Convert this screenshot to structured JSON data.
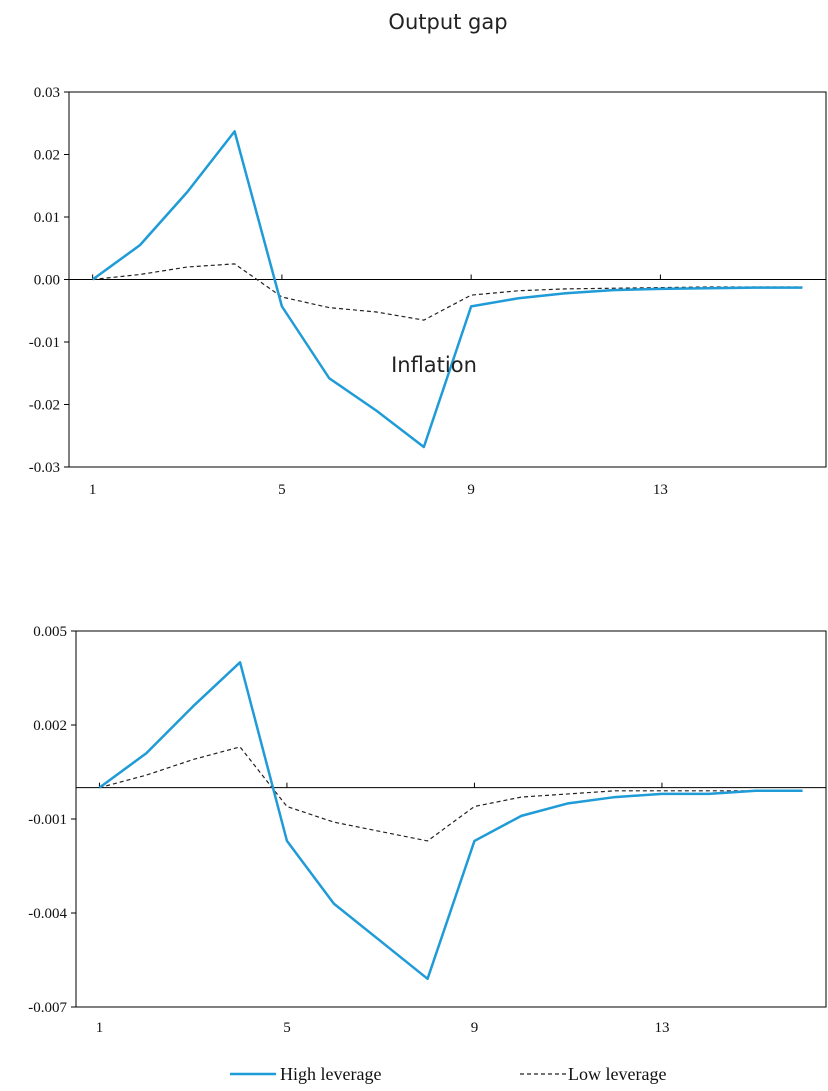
{
  "chart_data": [
    {
      "type": "line",
      "title": "Output gap",
      "x": [
        1,
        2,
        3,
        4,
        5,
        6,
        7,
        8,
        9,
        10,
        11,
        12,
        13,
        14,
        15,
        16
      ],
      "xticks": [
        "1",
        "5",
        "9",
        "13"
      ],
      "xtick_values": [
        1,
        5,
        9,
        13
      ],
      "xlim": [
        0.5,
        16.5
      ],
      "yticks": [
        "0.03",
        "0.02",
        "0.01",
        "0.00",
        "-0.01",
        "-0.02",
        "-0.03"
      ],
      "ytick_values": [
        0.03,
        0.02,
        0.01,
        0.0,
        -0.01,
        -0.02,
        -0.03
      ],
      "ylim": [
        -0.03,
        0.03
      ],
      "grid": false,
      "series": [
        {
          "name": "High leverage",
          "color": "#1f9bd7",
          "style": "solid",
          "values": [
            0.0,
            0.0055,
            0.014,
            0.0237,
            -0.0043,
            -0.0158,
            -0.021,
            -0.0268,
            -0.0043,
            -0.003,
            -0.0022,
            -0.0017,
            -0.0015,
            -0.0014,
            -0.0013,
            -0.0013
          ]
        },
        {
          "name": "Low leverage",
          "color": "#222222",
          "style": "dashed",
          "values": [
            0.0,
            0.0008,
            0.002,
            0.0025,
            -0.0028,
            -0.0045,
            -0.0052,
            -0.0065,
            -0.0025,
            -0.0018,
            -0.0015,
            -0.0014,
            -0.0013,
            -0.0012,
            -0.0012,
            -0.0012
          ]
        }
      ]
    },
    {
      "type": "line",
      "title": "Inflation",
      "x": [
        1,
        2,
        3,
        4,
        5,
        6,
        7,
        8,
        9,
        10,
        11,
        12,
        13,
        14,
        15,
        16
      ],
      "xticks": [
        "1",
        "5",
        "9",
        "13"
      ],
      "xtick_values": [
        1,
        5,
        9,
        13
      ],
      "xlim": [
        0.5,
        16.5
      ],
      "yticks": [
        "0.005",
        "0.002",
        "-0.001",
        "-0.004",
        "-0.007"
      ],
      "ytick_values": [
        0.005,
        0.002,
        -0.001,
        -0.004,
        -0.007
      ],
      "ylim": [
        -0.007,
        0.005
      ],
      "grid": false,
      "series": [
        {
          "name": "High leverage",
          "color": "#1f9bd7",
          "style": "solid",
          "values": [
            0.0,
            0.0011,
            0.0026,
            0.004,
            -0.0017,
            -0.0037,
            -0.0049,
            -0.0061,
            -0.0017,
            -0.0009,
            -0.0005,
            -0.0003,
            -0.0002,
            -0.0002,
            -0.0001,
            -0.0001
          ]
        },
        {
          "name": "Low leverage",
          "color": "#222222",
          "style": "dashed",
          "values": [
            0.0,
            0.0004,
            0.0009,
            0.0013,
            -0.0006,
            -0.0011,
            -0.0014,
            -0.0017,
            -0.0006,
            -0.0003,
            -0.0002,
            -0.0001,
            -0.0001,
            -0.0001,
            -0.0001,
            -0.0001
          ]
        }
      ]
    }
  ],
  "legend": {
    "placement": "bottom",
    "items": [
      {
        "label": "High leverage",
        "color": "#1f9bd7",
        "style": "solid"
      },
      {
        "label": "Low leverage",
        "color": "#222222",
        "style": "dashed"
      }
    ]
  }
}
